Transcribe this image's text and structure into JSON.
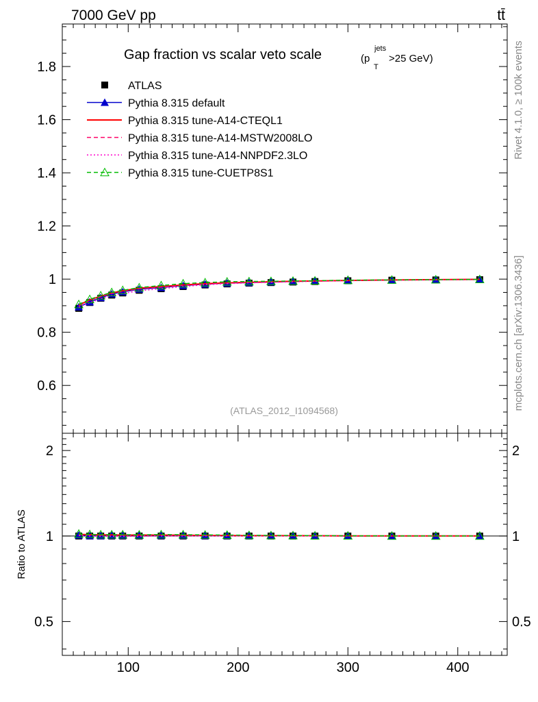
{
  "header": {
    "energy_label": "7000 GeV pp",
    "process_label": "tt̄",
    "side_rivet": "Rivet 4.1.0, ≥ 100k events",
    "side_mcplots": "mcplots.cern.ch [arXiv:1306.3436]",
    "analysis_id": "(ATLAS_2012_I1094568)"
  },
  "colors": {
    "data": "#000000",
    "default": "#0000cc",
    "cteql1": "#ff0000",
    "mstw": "#ff0066",
    "nnpdf": "#ff00cc",
    "cuetp8s1": "#00bb00",
    "axis": "#000000",
    "analysis_text": "#999999",
    "side_text": "#888888"
  },
  "chart_data": {
    "type": "line",
    "title_main": "Gap fraction vs scalar veto scale",
    "title_paren_open": "(p",
    "title_sup": "jets",
    "title_sub": "T",
    "title_rest": ">25 GeV)",
    "xlim": [
      40,
      445
    ],
    "ylim": [
      0.42,
      1.96
    ],
    "ratio_ylim": [
      0.38,
      2.3
    ],
    "xlabel": "",
    "ratio_ylabel": "Ratio to ATLAS",
    "xticks": [
      100,
      200,
      300,
      400
    ],
    "xtick_labels": [
      "100",
      "200",
      "300",
      "400"
    ],
    "yticks": [
      0.6,
      0.8,
      1,
      1.2,
      1.4,
      1.6,
      1.8
    ],
    "ytick_labels": [
      "0.6",
      "0.8",
      "1",
      "1.2",
      "1.4",
      "1.6",
      "1.8"
    ],
    "ratio_yticks": [
      0.5,
      1,
      2
    ],
    "ratio_ytick_labels": [
      "0.5",
      "1",
      "2"
    ],
    "x": [
      55,
      65,
      75,
      85,
      95,
      110,
      130,
      150,
      170,
      190,
      210,
      230,
      250,
      270,
      300,
      340,
      380,
      420
    ],
    "series": [
      {
        "name": "ATLAS",
        "key": "data",
        "style": "marker-square",
        "values": [
          0.89,
          0.912,
          0.928,
          0.94,
          0.948,
          0.958,
          0.964,
          0.972,
          0.978,
          0.982,
          0.985,
          0.987,
          0.989,
          0.991,
          0.994,
          0.996,
          0.997,
          0.998
        ],
        "ratio": [
          1,
          1,
          1,
          1,
          1,
          1,
          1,
          1,
          1,
          1,
          1,
          1,
          1,
          1,
          1,
          1,
          1,
          1
        ]
      },
      {
        "name": "Pythia 8.315 default",
        "key": "default",
        "style": "solid-triangle",
        "values": [
          0.895,
          0.914,
          0.93,
          0.944,
          0.952,
          0.962,
          0.968,
          0.976,
          0.981,
          0.985,
          0.987,
          0.989,
          0.991,
          0.993,
          0.995,
          0.997,
          0.998,
          0.999
        ],
        "ratio": [
          1.006,
          1.002,
          1.002,
          1.004,
          1.004,
          1.004,
          1.004,
          1.004,
          1.003,
          1.003,
          1.002,
          1.002,
          1.002,
          1.002,
          1.001,
          1.001,
          1.001,
          1.001
        ]
      },
      {
        "name": "Pythia 8.315 tune-A14-CTEQL1",
        "key": "cteql1",
        "style": "solid",
        "values": [
          0.902,
          0.922,
          0.936,
          0.948,
          0.956,
          0.966,
          0.972,
          0.978,
          0.983,
          0.986,
          0.988,
          0.99,
          0.992,
          0.993,
          0.995,
          0.997,
          0.998,
          0.999
        ],
        "ratio": [
          1.013,
          1.011,
          1.009,
          1.009,
          1.008,
          1.008,
          1.008,
          1.006,
          1.005,
          1.004,
          1.003,
          1.003,
          1.003,
          1.002,
          1.001,
          1.001,
          1.001,
          1.001
        ]
      },
      {
        "name": "Pythia 8.315 tune-A14-MSTW2008LO",
        "key": "mstw",
        "style": "dashed",
        "values": [
          0.9,
          0.92,
          0.934,
          0.946,
          0.954,
          0.964,
          0.97,
          0.977,
          0.982,
          0.985,
          0.988,
          0.99,
          0.991,
          0.993,
          0.995,
          0.997,
          0.998,
          0.999
        ],
        "ratio": [
          1.011,
          1.009,
          1.006,
          1.006,
          1.006,
          1.006,
          1.006,
          1.005,
          1.004,
          1.003,
          1.003,
          1.003,
          1.002,
          1.002,
          1.001,
          1.001,
          1.001,
          1.001
        ]
      },
      {
        "name": "Pythia 8.315 tune-A14-NNPDF2.3LO",
        "key": "nnpdf",
        "style": "dotted",
        "values": [
          0.894,
          0.912,
          0.926,
          0.938,
          0.946,
          0.956,
          0.964,
          0.972,
          0.979,
          0.983,
          0.986,
          0.988,
          0.99,
          0.992,
          0.994,
          0.996,
          0.997,
          0.998
        ],
        "ratio": [
          1.004,
          1.0,
          0.998,
          0.998,
          0.998,
          0.998,
          1.0,
          1.0,
          1.001,
          1.001,
          1.001,
          1.001,
          1.001,
          1.001,
          1.0,
          1.0,
          1.0,
          1.0
        ]
      },
      {
        "name": "Pythia 8.315 tune-CUETP8S1",
        "key": "cuetp8s1",
        "style": "dashed-open-triangle",
        "values": [
          0.905,
          0.924,
          0.938,
          0.95,
          0.958,
          0.968,
          0.976,
          0.983,
          0.987,
          0.99,
          0.991,
          0.992,
          0.993,
          0.994,
          0.996,
          0.997,
          0.998,
          0.999
        ],
        "ratio": [
          1.017,
          1.013,
          1.011,
          1.011,
          1.011,
          1.01,
          1.012,
          1.011,
          1.009,
          1.008,
          1.006,
          1.005,
          1.004,
          1.003,
          1.002,
          1.001,
          1.001,
          1.001
        ]
      }
    ]
  }
}
